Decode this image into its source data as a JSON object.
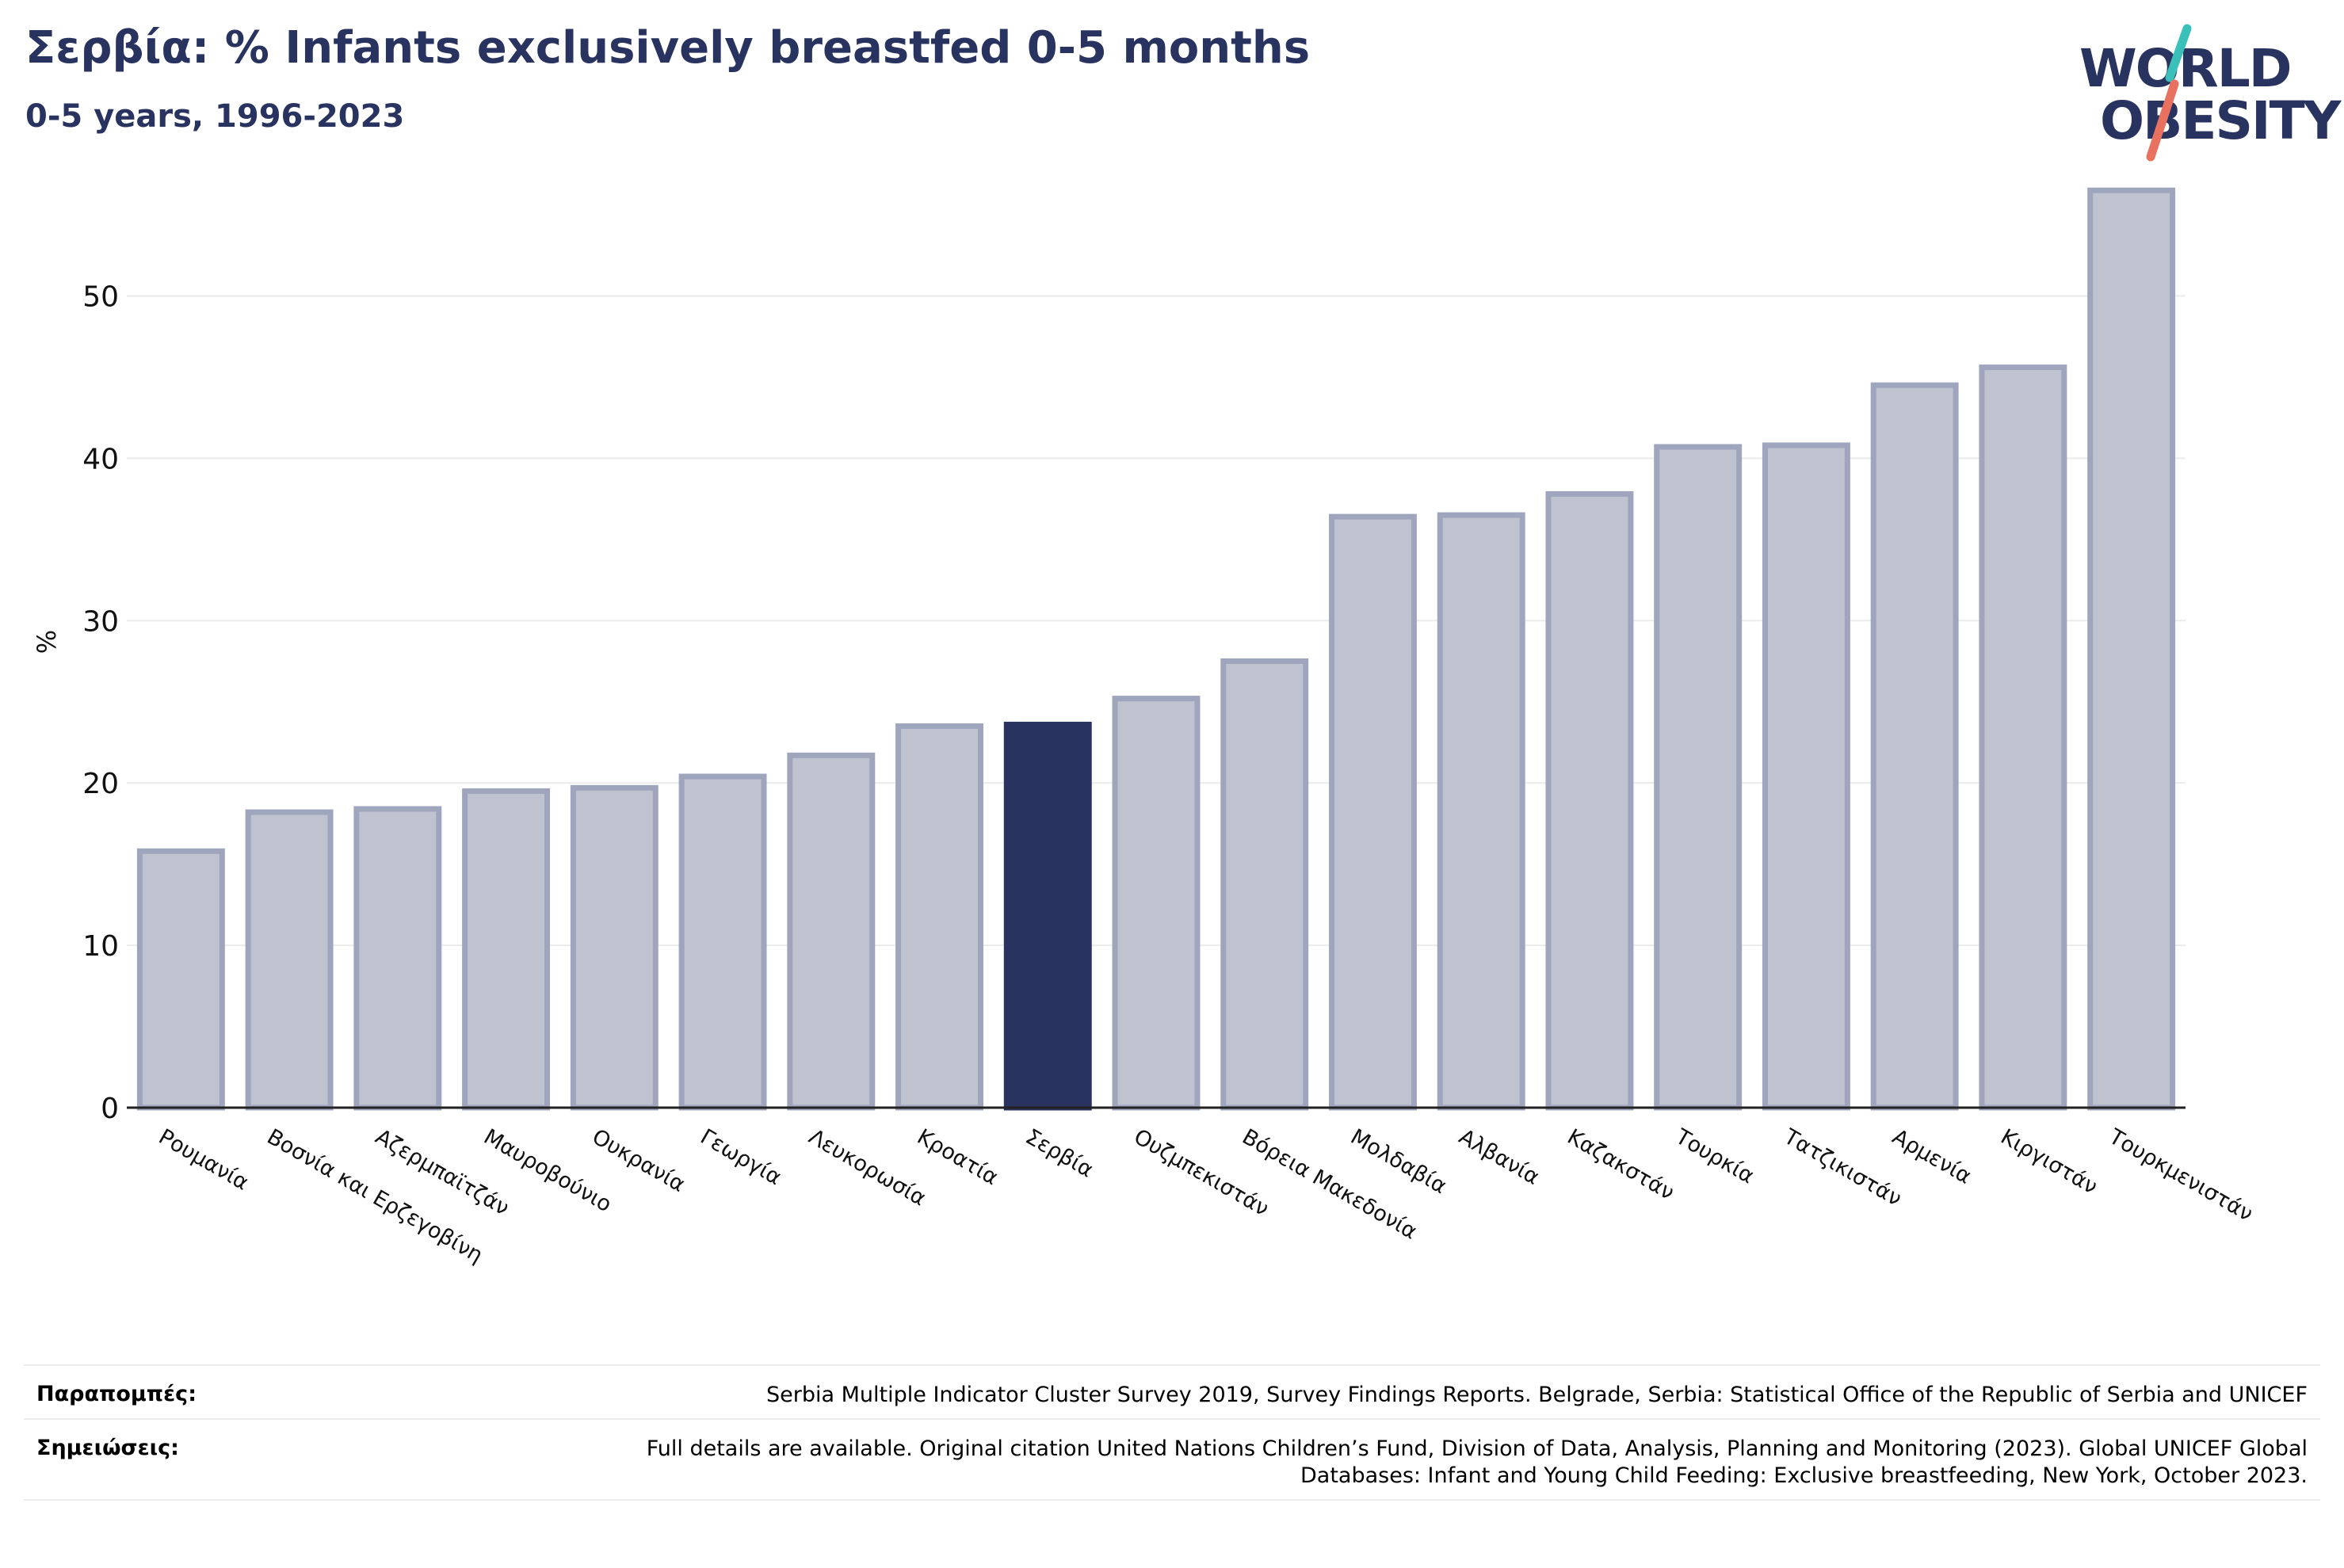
{
  "header": {
    "title": "Σερβία: % Infants exclusively breastfed 0-5 months",
    "subtitle": "0-5 years, 1996-2023"
  },
  "logo": {
    "line1": "WORLD",
    "line2": "OBESITY",
    "colors": {
      "text": "#283360",
      "teal": "#3bbfb9",
      "coral": "#e8715f"
    }
  },
  "chart_data": {
    "type": "bar",
    "ylabel": "%",
    "ylim": [
      0,
      57
    ],
    "yticks": [
      0,
      10,
      20,
      30,
      40,
      50
    ],
    "grid": true,
    "highlight": "Σερβία",
    "colors": {
      "bar": "#bfc2cf",
      "bar_edge": "#9fa5bd",
      "highlight": "#283360",
      "grid": "#ebebeb",
      "axis": "#222222"
    },
    "categories": [
      "Ρουμανία",
      "Βοσνία και Ερζεγοβίνη",
      "Αζερμπαϊτζάν",
      "Μαυροβούνιο",
      "Ουκρανία",
      "Γεωργία",
      "Λευκορωσία",
      "Κροατία",
      "Σερβία",
      "Ουζμπεκιστάν",
      "Βόρεια Μακεδονία",
      "Μολδαβία",
      "Αλβανία",
      "Καζακστάν",
      "Τουρκία",
      "Τατζικιστάν",
      "Αρμενία",
      "Κιργιστάν",
      "Τουρκμενιστάν"
    ],
    "values": [
      15.8,
      18.2,
      18.4,
      19.5,
      19.7,
      20.4,
      21.7,
      23.5,
      23.6,
      25.2,
      27.5,
      36.4,
      36.5,
      37.8,
      40.7,
      40.8,
      44.5,
      45.6,
      56.5
    ]
  },
  "footer": {
    "references_label": "Παραπομπές:",
    "references_text": "Serbia Multiple Indicator Cluster Survey 2019, Survey Findings Reports. Belgrade, Serbia: Statistical Office of the Republic of Serbia and UNICEF",
    "notes_label": "Σημειώσεις:",
    "notes_text": "Full details are available. Original citation United Nations Children’s Fund, Division of Data, Analysis, Planning and Monitoring (2023). Global UNICEF Global Databases: Infant and Young Child Feeding: Exclusive breastfeeding, New York, October 2023."
  }
}
